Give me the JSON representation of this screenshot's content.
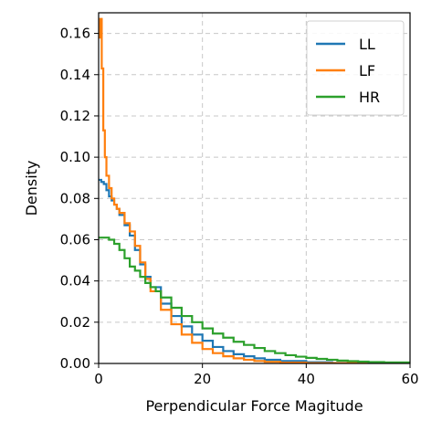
{
  "chart_data": {
    "type": "line",
    "step": true,
    "xlabel": "Perpendicular Force Magitude",
    "ylabel": "Density",
    "xlim": [
      0,
      60
    ],
    "ylim": [
      0,
      0.17
    ],
    "x_ticks": [
      "0",
      "20",
      "40",
      "60"
    ],
    "y_ticks": [
      "0.00",
      "0.02",
      "0.04",
      "0.06",
      "0.08",
      "0.10",
      "0.12",
      "0.14",
      "0.16"
    ],
    "grid": true,
    "legend_position": "top-right",
    "series": [
      {
        "name": "LL",
        "color": "#1f77b4",
        "x": [
          0,
          0.5,
          1,
          1.5,
          2,
          2.5,
          3,
          3.5,
          4,
          5,
          6,
          7,
          8,
          9,
          10,
          12,
          14,
          16,
          18,
          20,
          22,
          24,
          26,
          28,
          30,
          32,
          35,
          40,
          45,
          50,
          55,
          60
        ],
        "y": [
          0.089,
          0.088,
          0.087,
          0.084,
          0.081,
          0.079,
          0.077,
          0.075,
          0.072,
          0.067,
          0.062,
          0.055,
          0.048,
          0.042,
          0.037,
          0.029,
          0.023,
          0.018,
          0.014,
          0.011,
          0.008,
          0.006,
          0.0045,
          0.0035,
          0.0025,
          0.0018,
          0.0012,
          0.0006,
          0.0003,
          0.00015,
          7e-05,
          3e-05
        ]
      },
      {
        "name": "LF",
        "color": "#ff7f0e",
        "x": [
          0,
          0.3,
          0.6,
          0.9,
          1.2,
          1.5,
          2,
          2.5,
          3,
          3.5,
          4,
          5,
          6,
          7,
          8,
          9,
          10,
          12,
          14,
          16,
          18,
          20,
          22,
          24,
          26,
          28,
          30,
          32,
          35,
          40,
          50,
          60
        ],
        "y": [
          0.158,
          0.167,
          0.143,
          0.113,
          0.1,
          0.091,
          0.085,
          0.08,
          0.077,
          0.075,
          0.073,
          0.068,
          0.064,
          0.057,
          0.049,
          0.041,
          0.035,
          0.026,
          0.019,
          0.014,
          0.01,
          0.007,
          0.005,
          0.0035,
          0.0025,
          0.0018,
          0.0012,
          0.0008,
          0.0004,
          0.0002,
          5e-05,
          2e-05
        ]
      },
      {
        "name": "HR",
        "color": "#2ca02c",
        "x": [
          0,
          1,
          2,
          3,
          4,
          5,
          6,
          7,
          8,
          9,
          10,
          11,
          12,
          14,
          16,
          18,
          20,
          22,
          24,
          26,
          28,
          30,
          32,
          34,
          36,
          38,
          40,
          42,
          44,
          46,
          48,
          50,
          52,
          55,
          60
        ],
        "y": [
          0.061,
          0.061,
          0.06,
          0.058,
          0.055,
          0.051,
          0.047,
          0.045,
          0.042,
          0.039,
          0.037,
          0.035,
          0.032,
          0.027,
          0.023,
          0.02,
          0.017,
          0.0145,
          0.0125,
          0.0105,
          0.009,
          0.0075,
          0.006,
          0.005,
          0.004,
          0.0033,
          0.0027,
          0.0022,
          0.0018,
          0.0014,
          0.0011,
          0.0009,
          0.0007,
          0.0005,
          0.0003
        ]
      }
    ]
  }
}
